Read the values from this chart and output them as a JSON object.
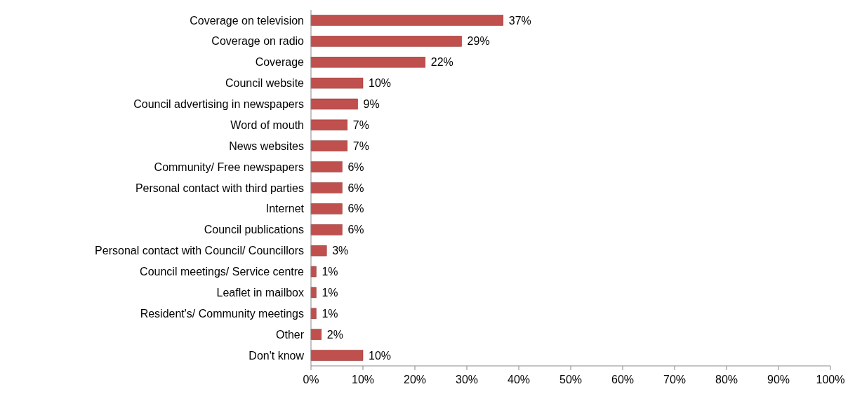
{
  "chart_data": {
    "type": "bar",
    "orientation": "horizontal",
    "categories": [
      "Coverage on television",
      "Coverage on radio",
      "Coverage",
      "Council website",
      "Council advertising in newspapers",
      "Word of mouth",
      "News websites",
      "Community/ Free newspapers",
      "Personal contact with third parties",
      "Internet",
      "Council publications",
      "Personal contact with Council/ Councillors",
      "Council meetings/ Service centre",
      "Leaflet in mailbox",
      "Resident's/ Community meetings",
      "Other",
      "Don't know"
    ],
    "values": [
      37,
      29,
      22,
      10,
      9,
      7,
      7,
      6,
      6,
      6,
      6,
      3,
      1,
      1,
      1,
      2,
      10
    ],
    "value_labels": [
      "37%",
      "29%",
      "22%",
      "10%",
      "9%",
      "7%",
      "7%",
      "6%",
      "6%",
      "6%",
      "6%",
      "3%",
      "1%",
      "1%",
      "1%",
      "2%",
      "10%"
    ],
    "color": "#c0504d",
    "xlim": [
      0,
      100
    ],
    "xticks": [
      {
        "value": 0,
        "label": "0%"
      },
      {
        "value": 10,
        "label": "10%"
      },
      {
        "value": 20,
        "label": "20%"
      },
      {
        "value": 30,
        "label": "30%"
      },
      {
        "value": 40,
        "label": "40%"
      },
      {
        "value": 50,
        "label": "50%"
      },
      {
        "value": 60,
        "label": "60%"
      },
      {
        "value": 70,
        "label": "70%"
      },
      {
        "value": 80,
        "label": "80%"
      },
      {
        "value": 90,
        "label": "90%"
      },
      {
        "value": 100,
        "label": "100%"
      }
    ],
    "grid": false
  }
}
